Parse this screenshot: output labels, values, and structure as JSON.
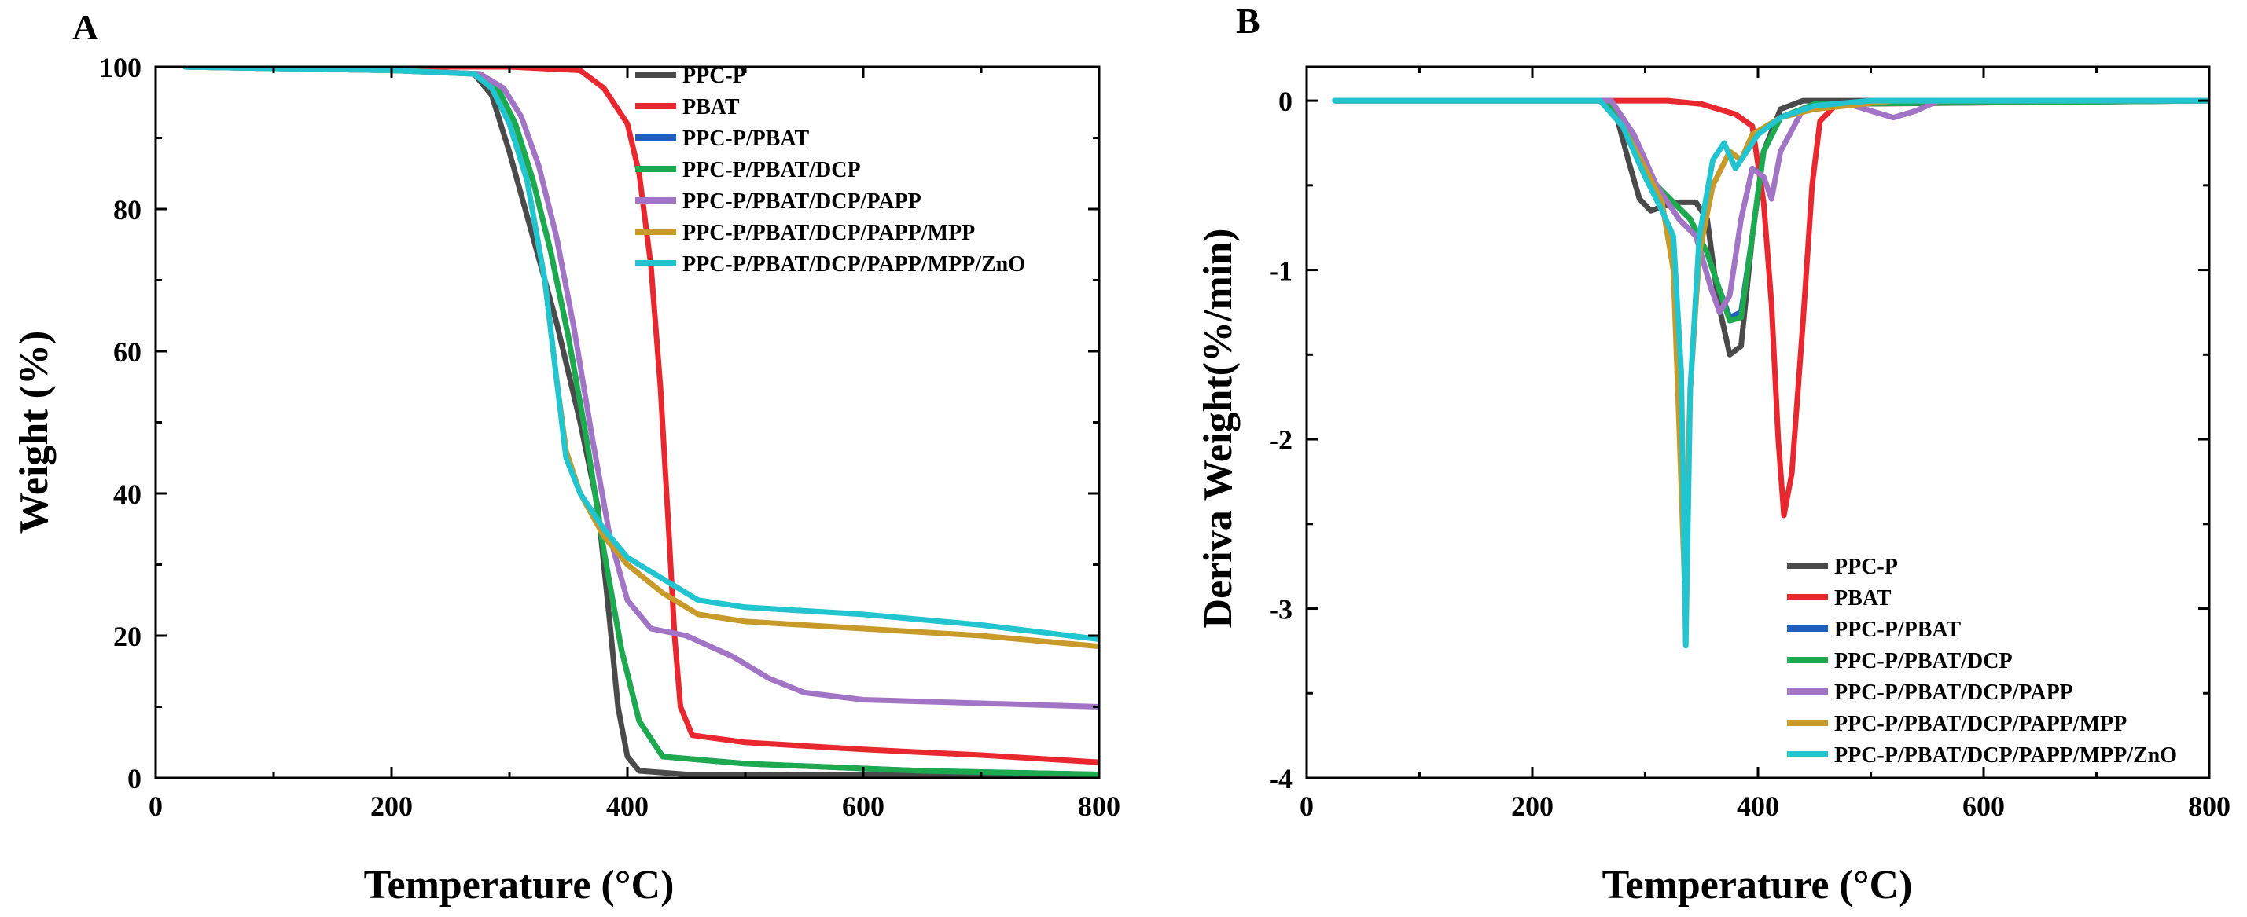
{
  "chart_data": [
    {
      "panel": "A",
      "type": "line",
      "xlabel": "Temperature (°C)",
      "ylabel": "Weight (%)",
      "xlim": [
        0,
        800
      ],
      "ylim": [
        0,
        100
      ],
      "xticks": [
        0,
        200,
        400,
        600,
        800
      ],
      "yticks": [
        0,
        20,
        40,
        60,
        80,
        100
      ],
      "grid": false,
      "legend_position": "top-right",
      "series": [
        {
          "name": "PPC-P",
          "color": "#4a4a4a",
          "points": [
            [
              25,
              100
            ],
            [
              200,
              99.5
            ],
            [
              270,
              99
            ],
            [
              285,
              96
            ],
            [
              300,
              88
            ],
            [
              320,
              76
            ],
            [
              340,
              64
            ],
            [
              360,
              50
            ],
            [
              375,
              38
            ],
            [
              385,
              22
            ],
            [
              392,
              10
            ],
            [
              400,
              3
            ],
            [
              410,
              1
            ],
            [
              450,
              0.5
            ],
            [
              800,
              0.3
            ]
          ]
        },
        {
          "name": "PBAT",
          "color": "#e8272e",
          "points": [
            [
              25,
              100
            ],
            [
              300,
              100
            ],
            [
              360,
              99.5
            ],
            [
              380,
              97
            ],
            [
              400,
              92
            ],
            [
              410,
              85
            ],
            [
              420,
              72
            ],
            [
              428,
              55
            ],
            [
              435,
              35
            ],
            [
              440,
              20
            ],
            [
              445,
              10
            ],
            [
              455,
              6
            ],
            [
              500,
              5
            ],
            [
              600,
              4
            ],
            [
              700,
              3.2
            ],
            [
              800,
              2.2
            ]
          ]
        },
        {
          "name": "PPC-P/PBAT",
          "color": "#1f5fbf",
          "points": [
            [
              25,
              100
            ],
            [
              200,
              99.5
            ],
            [
              275,
              99
            ],
            [
              290,
              97
            ],
            [
              305,
              92
            ],
            [
              320,
              84
            ],
            [
              335,
              74
            ],
            [
              350,
              62
            ],
            [
              365,
              48
            ],
            [
              380,
              32
            ],
            [
              395,
              18
            ],
            [
              410,
              8
            ],
            [
              430,
              3
            ],
            [
              500,
              2
            ],
            [
              650,
              1
            ],
            [
              800,
              0.5
            ]
          ]
        },
        {
          "name": "PPC-P/PBAT/DCP",
          "color": "#1daa4e",
          "points": [
            [
              25,
              100
            ],
            [
              200,
              99.5
            ],
            [
              275,
              99
            ],
            [
              290,
              97
            ],
            [
              305,
              92
            ],
            [
              320,
              84
            ],
            [
              335,
              74
            ],
            [
              350,
              62
            ],
            [
              365,
              48
            ],
            [
              380,
              32
            ],
            [
              395,
              18
            ],
            [
              410,
              8
            ],
            [
              430,
              3
            ],
            [
              500,
              2
            ],
            [
              650,
              1
            ],
            [
              800,
              0.5
            ]
          ]
        },
        {
          "name": "PPC-P/PBAT/DCP/PAPP",
          "color": "#a274c6",
          "points": [
            [
              25,
              100
            ],
            [
              200,
              99.5
            ],
            [
              275,
              99
            ],
            [
              295,
              97
            ],
            [
              310,
              93
            ],
            [
              325,
              86
            ],
            [
              340,
              76
            ],
            [
              355,
              63
            ],
            [
              370,
              48
            ],
            [
              385,
              34
            ],
            [
              400,
              25
            ],
            [
              420,
              21
            ],
            [
              450,
              20
            ],
            [
              490,
              17
            ],
            [
              520,
              14
            ],
            [
              550,
              12
            ],
            [
              600,
              11
            ],
            [
              700,
              10.5
            ],
            [
              800,
              10
            ]
          ]
        },
        {
          "name": "PPC-P/PBAT/DCP/PAPP/MPP",
          "color": "#c89a2a",
          "points": [
            [
              25,
              100
            ],
            [
              200,
              99.5
            ],
            [
              270,
              99
            ],
            [
              285,
              97
            ],
            [
              300,
              92
            ],
            [
              315,
              84
            ],
            [
              330,
              70
            ],
            [
              340,
              56
            ],
            [
              348,
              46
            ],
            [
              360,
              40
            ],
            [
              380,
              34
            ],
            [
              400,
              30
            ],
            [
              430,
              26
            ],
            [
              460,
              23
            ],
            [
              500,
              22
            ],
            [
              600,
              21
            ],
            [
              700,
              20
            ],
            [
              800,
              18.5
            ]
          ]
        },
        {
          "name": "PPC-P/PBAT/DCP/PAPP/MPP/ZnO",
          "color": "#22c4d0",
          "points": [
            [
              25,
              100
            ],
            [
              200,
              99.5
            ],
            [
              270,
              99
            ],
            [
              285,
              97
            ],
            [
              300,
              92
            ],
            [
              315,
              84
            ],
            [
              330,
              70
            ],
            [
              340,
              56
            ],
            [
              348,
              45
            ],
            [
              360,
              40
            ],
            [
              380,
              35
            ],
            [
              400,
              31
            ],
            [
              430,
              28
            ],
            [
              460,
              25
            ],
            [
              500,
              24
            ],
            [
              600,
              23
            ],
            [
              700,
              21.5
            ],
            [
              800,
              19.5
            ]
          ]
        }
      ]
    },
    {
      "panel": "B",
      "type": "line",
      "xlabel": "Temperature (°C)",
      "ylabel": "Deriva Weight(%/min)",
      "xlim": [
        0,
        800
      ],
      "ylim": [
        -4,
        0.2
      ],
      "xticks": [
        0,
        200,
        400,
        600,
        800
      ],
      "yticks": [
        0,
        -1,
        -2,
        -3,
        -4
      ],
      "grid": false,
      "legend_position": "bottom-right",
      "series": [
        {
          "name": "PPC-P",
          "color": "#4a4a4a",
          "points": [
            [
              25,
              0
            ],
            [
              260,
              0
            ],
            [
              275,
              -0.1
            ],
            [
              285,
              -0.35
            ],
            [
              295,
              -0.58
            ],
            [
              305,
              -0.65
            ],
            [
              318,
              -0.62
            ],
            [
              330,
              -0.6
            ],
            [
              345,
              -0.6
            ],
            [
              355,
              -0.7
            ],
            [
              365,
              -1.2
            ],
            [
              375,
              -1.5
            ],
            [
              385,
              -1.45
            ],
            [
              395,
              -0.8
            ],
            [
              405,
              -0.3
            ],
            [
              420,
              -0.05
            ],
            [
              440,
              0
            ],
            [
              800,
              0
            ]
          ]
        },
        {
          "name": "PBAT",
          "color": "#e8272e",
          "points": [
            [
              25,
              0
            ],
            [
              320,
              0
            ],
            [
              350,
              -0.02
            ],
            [
              380,
              -0.08
            ],
            [
              395,
              -0.15
            ],
            [
              405,
              -0.6
            ],
            [
              412,
              -1.2
            ],
            [
              418,
              -2.0
            ],
            [
              423,
              -2.45
            ],
            [
              430,
              -2.2
            ],
            [
              440,
              -1.3
            ],
            [
              448,
              -0.5
            ],
            [
              455,
              -0.12
            ],
            [
              470,
              -0.02
            ],
            [
              800,
              0
            ]
          ]
        },
        {
          "name": "PPC-P/PBAT",
          "color": "#1f5fbf",
          "points": [
            [
              25,
              0
            ],
            [
              265,
              0
            ],
            [
              280,
              -0.1
            ],
            [
              295,
              -0.3
            ],
            [
              310,
              -0.5
            ],
            [
              325,
              -0.6
            ],
            [
              340,
              -0.7
            ],
            [
              355,
              -0.9
            ],
            [
              365,
              -1.1
            ],
            [
              375,
              -1.28
            ],
            [
              385,
              -1.25
            ],
            [
              395,
              -0.8
            ],
            [
              405,
              -0.3
            ],
            [
              420,
              -0.1
            ],
            [
              450,
              -0.02
            ],
            [
              800,
              0
            ]
          ]
        },
        {
          "name": "PPC-P/PBAT/DCP",
          "color": "#1daa4e",
          "points": [
            [
              25,
              0
            ],
            [
              265,
              0
            ],
            [
              280,
              -0.1
            ],
            [
              295,
              -0.3
            ],
            [
              310,
              -0.5
            ],
            [
              325,
              -0.6
            ],
            [
              340,
              -0.7
            ],
            [
              355,
              -0.9
            ],
            [
              365,
              -1.1
            ],
            [
              375,
              -1.3
            ],
            [
              385,
              -1.28
            ],
            [
              395,
              -0.8
            ],
            [
              405,
              -0.3
            ],
            [
              420,
              -0.1
            ],
            [
              450,
              -0.02
            ],
            [
              800,
              0
            ]
          ]
        },
        {
          "name": "PPC-P/PBAT/DCP/PAPP",
          "color": "#a274c6",
          "points": [
            [
              25,
              0
            ],
            [
              270,
              0
            ],
            [
              290,
              -0.2
            ],
            [
              310,
              -0.5
            ],
            [
              330,
              -0.7
            ],
            [
              345,
              -0.8
            ],
            [
              358,
              -1.1
            ],
            [
              366,
              -1.25
            ],
            [
              375,
              -1.15
            ],
            [
              385,
              -0.7
            ],
            [
              395,
              -0.4
            ],
            [
              405,
              -0.45
            ],
            [
              412,
              -0.58
            ],
            [
              420,
              -0.3
            ],
            [
              440,
              -0.05
            ],
            [
              480,
              -0.02
            ],
            [
              500,
              -0.06
            ],
            [
              520,
              -0.1
            ],
            [
              540,
              -0.06
            ],
            [
              560,
              0
            ],
            [
              800,
              0
            ]
          ]
        },
        {
          "name": "PPC-P/PBAT/DCP/PAPP/MPP",
          "color": "#c89a2a",
          "points": [
            [
              25,
              0
            ],
            [
              260,
              0
            ],
            [
              280,
              -0.15
            ],
            [
              300,
              -0.4
            ],
            [
              315,
              -0.6
            ],
            [
              325,
              -1.0
            ],
            [
              330,
              -1.9
            ],
            [
              335,
              -2.85
            ],
            [
              340,
              -1.7
            ],
            [
              348,
              -0.9
            ],
            [
              360,
              -0.5
            ],
            [
              375,
              -0.3
            ],
            [
              385,
              -0.35
            ],
            [
              395,
              -0.2
            ],
            [
              420,
              -0.1
            ],
            [
              450,
              -0.05
            ],
            [
              520,
              0
            ],
            [
              800,
              0
            ]
          ]
        },
        {
          "name": "PPC-P/PBAT/DCP/PAPP/MPP/ZnO",
          "color": "#22c4d0",
          "points": [
            [
              25,
              0
            ],
            [
              260,
              0
            ],
            [
              280,
              -0.15
            ],
            [
              300,
              -0.45
            ],
            [
              315,
              -0.65
            ],
            [
              325,
              -0.8
            ],
            [
              332,
              -1.6
            ],
            [
              336,
              -3.22
            ],
            [
              340,
              -1.7
            ],
            [
              348,
              -0.8
            ],
            [
              360,
              -0.35
            ],
            [
              370,
              -0.25
            ],
            [
              380,
              -0.4
            ],
            [
              390,
              -0.3
            ],
            [
              400,
              -0.2
            ],
            [
              420,
              -0.1
            ],
            [
              450,
              -0.03
            ],
            [
              500,
              0
            ],
            [
              800,
              0
            ]
          ]
        }
      ]
    }
  ]
}
